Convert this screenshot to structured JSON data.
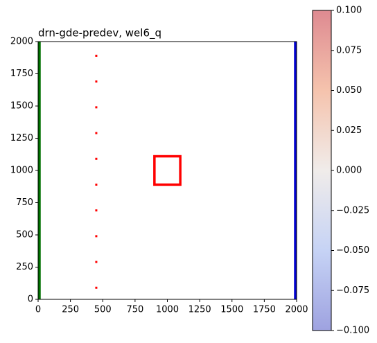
{
  "chart_data": {
    "type": "scatter",
    "title": "drn-gde-predev, wel6_q",
    "xlim": [
      0,
      2000
    ],
    "ylim": [
      0,
      2000
    ],
    "xticks": [
      0,
      250,
      500,
      750,
      1000,
      1250,
      1500,
      1750,
      2000
    ],
    "yticks": [
      0,
      250,
      500,
      750,
      1000,
      1250,
      1500,
      1750,
      2000
    ],
    "series": [
      {
        "color": "#ff0000",
        "x": [
          450,
          450,
          450,
          450,
          450,
          450,
          450,
          450,
          450,
          450
        ],
        "values": [
          90,
          290,
          490,
          690,
          890,
          1090,
          1290,
          1490,
          1690,
          1890
        ]
      }
    ],
    "regions": [
      {
        "color": "#ff0000",
        "fill": false,
        "x": [
          900,
          1100
        ],
        "y": [
          890,
          1110
        ]
      },
      {
        "color": "#007000",
        "fill": true,
        "x": [
          0,
          20
        ],
        "y": [
          0,
          2000
        ]
      },
      {
        "color": "#0000cc",
        "fill": true,
        "x": [
          1980,
          2000
        ],
        "y": [
          0,
          2000
        ]
      }
    ],
    "colorbar": {
      "lim": [
        -0.1,
        0.1
      ],
      "ticks": [
        {
          "value": -0.1,
          "label": "−0.100"
        },
        {
          "value": -0.075,
          "label": "−0.075"
        },
        {
          "value": -0.05,
          "label": "−0.050"
        },
        {
          "value": -0.025,
          "label": "−0.025"
        },
        {
          "value": 0,
          "label": "0.000"
        },
        {
          "value": 0.025,
          "label": "0.025"
        },
        {
          "value": 0.05,
          "label": "0.050"
        },
        {
          "value": 0.075,
          "label": "0.075"
        },
        {
          "value": 0.1,
          "label": "0.100"
        }
      ]
    }
  }
}
